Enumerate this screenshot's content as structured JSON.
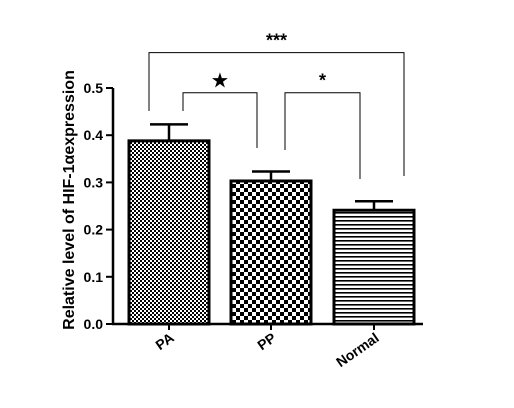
{
  "chart_data": {
    "type": "bar",
    "title": "",
    "xlabel": "",
    "ylabel": "Relative level of HIF-1αexpression",
    "ylim": [
      0,
      0.5
    ],
    "yticks": [
      "0.0",
      "0.1",
      "0.2",
      "0.3",
      "0.4",
      "0.5"
    ],
    "grid": false,
    "categories": [
      "PA",
      "PP",
      "Normal"
    ],
    "values": [
      0.388,
      0.303,
      0.241
    ],
    "errors": [
      0.035,
      0.02,
      0.019
    ],
    "bar_patterns": [
      "fine-checker",
      "coarse-checker",
      "horizontal-lines"
    ],
    "significance": [
      {
        "from": "PP",
        "to": "PA",
        "label": "★",
        "level": 0.49
      },
      {
        "from": "Normal",
        "to": "PP",
        "label": "*",
        "level": 0.49
      },
      {
        "from": "Normal",
        "to": "PA",
        "label": "***",
        "level": 0.575
      }
    ]
  }
}
